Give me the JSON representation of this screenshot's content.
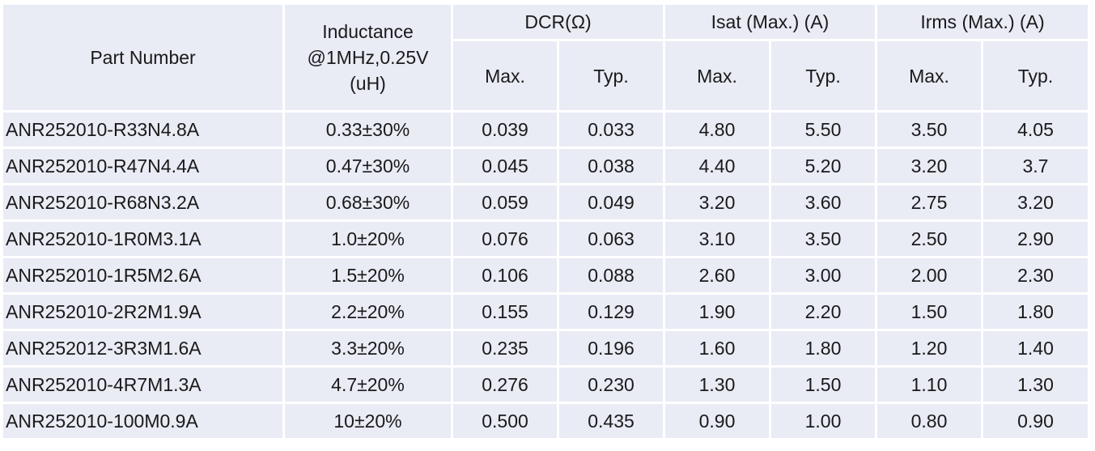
{
  "headers": {
    "part_number": "Part Number",
    "inductance": [
      "Inductance",
      "@1MHz,0.25V",
      "(uH)"
    ],
    "dcr": "DCR(Ω)",
    "isat": "Isat (Max.) (A)",
    "irms": "Irms (Max.) (A)",
    "max": "Max.",
    "typ": "Typ."
  },
  "rows": [
    {
      "part": "ANR252010-R33N4.8A",
      "inductance": "0.33±30%",
      "dcr_max": "0.039",
      "dcr_typ": "0.033",
      "isat_max": "4.80",
      "isat_typ": "5.50",
      "irms_max": "3.50",
      "irms_typ": "4.05"
    },
    {
      "part": "ANR252010-R47N4.4A",
      "inductance": "0.47±30%",
      "dcr_max": "0.045",
      "dcr_typ": "0.038",
      "isat_max": "4.40",
      "isat_typ": "5.20",
      "irms_max": "3.20",
      "irms_typ": "3.7"
    },
    {
      "part": "ANR252010-R68N3.2A",
      "inductance": "0.68±30%",
      "dcr_max": "0.059",
      "dcr_typ": "0.049",
      "isat_max": "3.20",
      "isat_typ": "3.60",
      "irms_max": "2.75",
      "irms_typ": "3.20"
    },
    {
      "part": "ANR252010-1R0M3.1A",
      "inductance": "1.0±20%",
      "dcr_max": "0.076",
      "dcr_typ": "0.063",
      "isat_max": "3.10",
      "isat_typ": "3.50",
      "irms_max": "2.50",
      "irms_typ": "2.90"
    },
    {
      "part": "ANR252010-1R5M2.6A",
      "inductance": "1.5±20%",
      "dcr_max": "0.106",
      "dcr_typ": "0.088",
      "isat_max": "2.60",
      "isat_typ": "3.00",
      "irms_max": "2.00",
      "irms_typ": "2.30"
    },
    {
      "part": "ANR252010-2R2M1.9A",
      "inductance": "2.2±20%",
      "dcr_max": "0.155",
      "dcr_typ": "0.129",
      "isat_max": "1.90",
      "isat_typ": "2.20",
      "irms_max": "1.50",
      "irms_typ": "1.80"
    },
    {
      "part": "ANR252012-3R3M1.6A",
      "inductance": "3.3±20%",
      "dcr_max": "0.235",
      "dcr_typ": "0.196",
      "isat_max": "1.60",
      "isat_typ": "1.80",
      "irms_max": "1.20",
      "irms_typ": "1.40"
    },
    {
      "part": "ANR252010-4R7M1.3A",
      "inductance": "4.7±20%",
      "dcr_max": "0.276",
      "dcr_typ": "0.230",
      "isat_max": "1.30",
      "isat_typ": "1.50",
      "irms_max": "1.10",
      "irms_typ": "1.30"
    },
    {
      "part": "ANR252010-100M0.9A",
      "inductance": "10±20%",
      "dcr_max": "0.500",
      "dcr_typ": "0.435",
      "isat_max": "0.90",
      "isat_typ": "1.00",
      "irms_max": "0.80",
      "irms_typ": "0.90"
    }
  ],
  "colors": {
    "cell_background": "#e9ebf5",
    "grid_lines": "#ffffff",
    "text": "#1a1a1a"
  }
}
